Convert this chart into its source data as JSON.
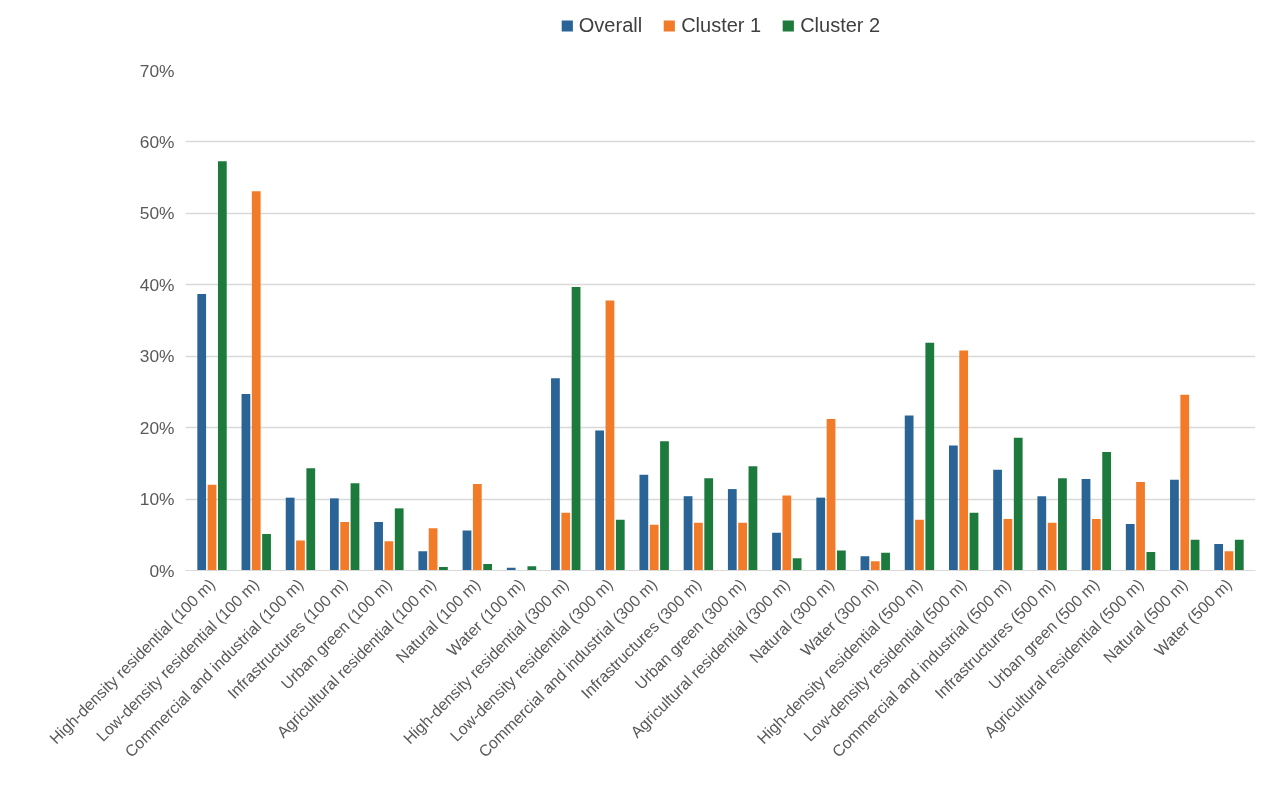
{
  "chart_data": {
    "type": "bar",
    "categories": [
      "High-density residential (100 m)",
      "Low-density residential (100 m)",
      "Commercial and industrial (100 m)",
      "Infrastructures (100 m)",
      "Urban green (100 m)",
      "Agricultural residential (100 m)",
      "Natural (100 m)",
      "Water (100 m)",
      "High-density residential (300 m)",
      "Low-density residential (300 m)",
      "Commercial and industrial (300 m)",
      "Infrastructures (300 m)",
      "Urban green (300 m)",
      "Agricultural residential (300 m)",
      "Natural (300 m)",
      "Water (300 m)",
      "High-density residential (500 m)",
      "Low-density residential (500 m)",
      "Commercial and industrial (500 m)",
      "Infrastructures (500 m)",
      "Urban green (500 m)",
      "Agricultural residential (500 m)",
      "Natural (500 m)",
      "Water (500 m)"
    ],
    "series": [
      {
        "name": "Overall",
        "color": "#2a6496",
        "values": [
          38.7,
          24.7,
          10.2,
          10.1,
          6.8,
          2.7,
          5.6,
          0.4,
          26.9,
          19.6,
          13.4,
          10.4,
          11.4,
          5.3,
          10.2,
          2.0,
          21.7,
          17.5,
          14.1,
          10.4,
          12.8,
          6.5,
          12.7,
          3.7
        ]
      },
      {
        "name": "Cluster 1",
        "color": "#f27b2a",
        "values": [
          12.0,
          53.1,
          4.2,
          6.8,
          4.1,
          5.9,
          12.1,
          0.0,
          8.1,
          37.8,
          6.4,
          6.7,
          6.7,
          10.5,
          21.2,
          1.3,
          7.1,
          30.8,
          7.2,
          6.7,
          7.2,
          12.4,
          24.6,
          2.7
        ]
      },
      {
        "name": "Cluster 2",
        "color": "#1c7a3c",
        "values": [
          57.3,
          5.1,
          14.3,
          12.2,
          8.7,
          0.5,
          0.9,
          0.6,
          39.7,
          7.1,
          18.1,
          12.9,
          14.6,
          1.7,
          2.8,
          2.5,
          31.9,
          8.1,
          18.6,
          12.9,
          16.6,
          2.6,
          4.3,
          4.3
        ]
      }
    ],
    "ylim": [
      0,
      70
    ],
    "yticks": [
      {
        "value": 0,
        "label": "0%"
      },
      {
        "value": 10,
        "label": "10%"
      },
      {
        "value": 20,
        "label": "20%"
      },
      {
        "value": 30,
        "label": "30%"
      },
      {
        "value": 40,
        "label": "40%"
      },
      {
        "value": 50,
        "label": "50%"
      },
      {
        "value": 60,
        "label": "60%"
      },
      {
        "value": 70,
        "label": "70%"
      }
    ],
    "grid": "y",
    "legend": "top"
  }
}
